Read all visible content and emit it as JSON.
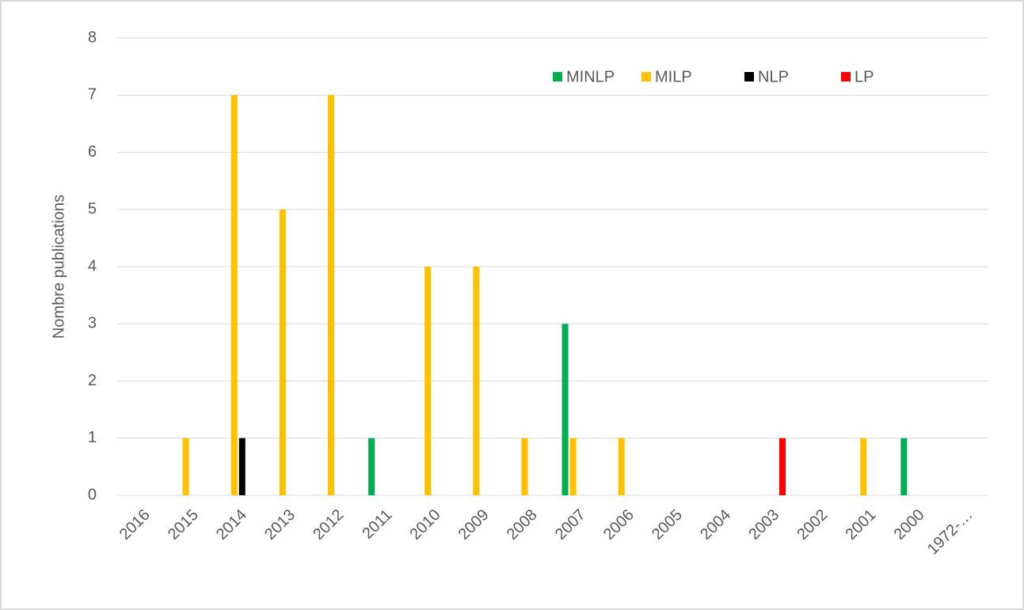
{
  "chart_data": {
    "type": "bar",
    "y_label": "Nombre  publications",
    "categories": [
      "2016",
      "2015",
      "2014",
      "2013",
      "2012",
      "2011",
      "2010",
      "2009",
      "2008",
      "2007",
      "2006",
      "2005",
      "2004",
      "2003",
      "2002",
      "2001",
      "2000",
      "1972-…"
    ],
    "series": [
      {
        "name": "MINLP",
        "color": "#00b050",
        "values": [
          0,
          0,
          0,
          0,
          0,
          1,
          0,
          0,
          0,
          3,
          0,
          0,
          0,
          0,
          0,
          0,
          1,
          0
        ]
      },
      {
        "name": "MILP",
        "color": "#ffc000",
        "values": [
          0,
          1,
          7,
          5,
          7,
          0,
          4,
          4,
          1,
          1,
          1,
          0,
          0,
          0,
          0,
          1,
          0,
          0
        ]
      },
      {
        "name": "NLP",
        "color": "#000000",
        "values": [
          0,
          0,
          1,
          0,
          0,
          0,
          0,
          0,
          0,
          0,
          0,
          0,
          0,
          0,
          0,
          0,
          0,
          0
        ]
      },
      {
        "name": "LP",
        "color": "#ff0000",
        "values": [
          0,
          0,
          0,
          0,
          0,
          0,
          0,
          0,
          0,
          0,
          0,
          0,
          0,
          1,
          0,
          0,
          0,
          0
        ]
      }
    ],
    "ylim": [
      0,
      8
    ],
    "yticks": [
      0,
      1,
      2,
      3,
      4,
      5,
      6,
      7,
      8
    ],
    "grid": true,
    "legend": "upper right"
  }
}
